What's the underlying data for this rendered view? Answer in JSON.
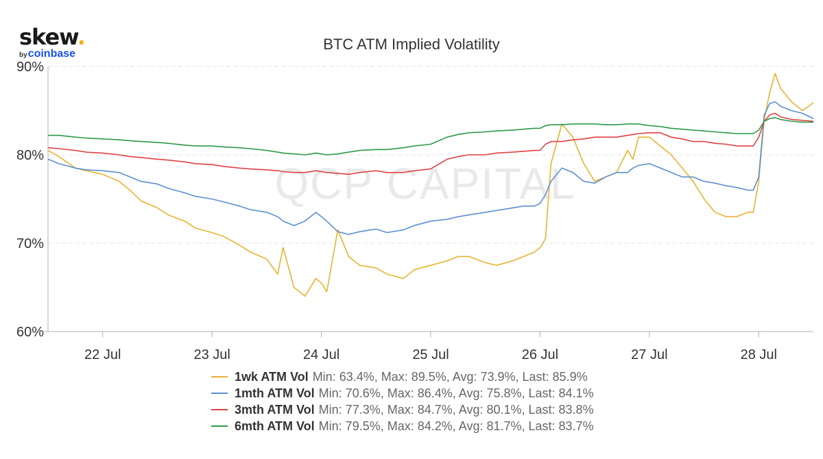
{
  "logo": {
    "main": "skew",
    "dot": ".",
    "by": "by",
    "brand": "coinbase"
  },
  "watermark": "QCP CAPITAL",
  "colors": {
    "grid": "#e6e6e6",
    "axis": "#b0b0b0",
    "watermark": "#e9e9e9"
  },
  "chart_data": {
    "type": "line",
    "title": "BTC ATM Implied Volatility",
    "xlabel": "",
    "ylabel": "",
    "x_ticks": [
      "22 Jul",
      "23 Jul",
      "24 Jul",
      "25 Jul",
      "26 Jul",
      "27 Jul",
      "28 Jul"
    ],
    "x_domain": [
      "21 Jul 12:00",
      "28 Jul 12:00"
    ],
    "y_ticks": [
      "60%",
      "70%",
      "80%",
      "90%"
    ],
    "ylim": [
      60,
      90
    ],
    "grid": true,
    "legend_position": "bottom-center",
    "x": [
      21.5,
      21.6,
      21.75,
      21.85,
      22.0,
      22.15,
      22.25,
      22.35,
      22.5,
      22.6,
      22.75,
      22.85,
      23.0,
      23.1,
      23.25,
      23.35,
      23.5,
      23.6,
      23.65,
      23.75,
      23.85,
      23.95,
      24.0,
      24.05,
      24.15,
      24.25,
      24.35,
      24.5,
      24.6,
      24.75,
      24.85,
      25.0,
      25.15,
      25.25,
      25.35,
      25.5,
      25.6,
      25.75,
      25.85,
      25.95,
      26.0,
      26.05,
      26.1,
      26.2,
      26.3,
      26.4,
      26.5,
      26.6,
      26.7,
      26.8,
      26.85,
      26.9,
      27.0,
      27.1,
      27.2,
      27.3,
      27.4,
      27.5,
      27.6,
      27.7,
      27.8,
      27.9,
      27.95,
      28.0,
      28.05,
      28.1,
      28.15,
      28.2,
      28.3,
      28.4,
      28.5
    ],
    "series": [
      {
        "name": "1wk ATM Vol",
        "color": "#e8b22f",
        "stats": "Min: 63.4%, Max: 89.5%, Avg: 73.9%, Last: 85.9%",
        "values": [
          80.5,
          79.8,
          78.5,
          78.2,
          77.8,
          77.0,
          76.0,
          74.8,
          74.0,
          73.2,
          72.5,
          71.7,
          71.2,
          70.8,
          69.8,
          69.0,
          68.2,
          66.5,
          69.5,
          65.0,
          64.0,
          66.0,
          65.5,
          64.5,
          71.5,
          68.5,
          67.5,
          67.2,
          66.5,
          66.0,
          67.0,
          67.5,
          68.0,
          68.5,
          68.5,
          67.8,
          67.5,
          68.0,
          68.5,
          69.0,
          69.5,
          70.5,
          79.0,
          83.5,
          82.0,
          79.0,
          77.0,
          77.5,
          78.0,
          80.5,
          79.5,
          82.0,
          82.0,
          81.0,
          80.0,
          78.5,
          77.0,
          75.0,
          73.5,
          73.0,
          73.0,
          73.5,
          73.5,
          77.0,
          84.0,
          87.0,
          89.2,
          87.5,
          86.0,
          85.0,
          85.9
        ]
      },
      {
        "name": "1mth ATM Vol",
        "color": "#5b8fd1",
        "stats": "Min: 70.6%, Max: 86.4%, Avg: 75.8%, Last: 84.1%",
        "values": [
          79.5,
          79.0,
          78.5,
          78.3,
          78.2,
          78.0,
          77.5,
          77.0,
          76.7,
          76.2,
          75.7,
          75.3,
          75.0,
          74.7,
          74.2,
          73.8,
          73.5,
          73.0,
          72.5,
          72.0,
          72.5,
          73.5,
          73.0,
          72.5,
          71.3,
          71.0,
          71.3,
          71.6,
          71.2,
          71.5,
          72.0,
          72.5,
          72.7,
          73.0,
          73.2,
          73.5,
          73.7,
          74.0,
          74.2,
          74.2,
          74.5,
          75.5,
          77.0,
          78.5,
          78.0,
          77.0,
          76.8,
          77.5,
          78.0,
          78.0,
          78.5,
          78.8,
          79.0,
          78.5,
          78.0,
          77.5,
          77.5,
          77.0,
          76.8,
          76.5,
          76.3,
          76.0,
          76.0,
          77.5,
          84.5,
          85.8,
          86.0,
          85.5,
          85.0,
          84.7,
          84.1
        ]
      },
      {
        "name": "3mth ATM Vol",
        "color": "#e04040",
        "stats": "Min: 77.3%, Max: 84.7%, Avg: 80.1%, Last: 83.8%",
        "values": [
          80.8,
          80.7,
          80.5,
          80.3,
          80.2,
          80.0,
          79.8,
          79.7,
          79.5,
          79.4,
          79.2,
          79.0,
          78.9,
          78.7,
          78.5,
          78.4,
          78.3,
          78.2,
          78.1,
          78.0,
          78.0,
          78.2,
          78.1,
          78.0,
          77.9,
          77.8,
          78.0,
          78.2,
          78.0,
          78.0,
          78.2,
          78.4,
          79.5,
          79.8,
          80.0,
          80.0,
          80.2,
          80.3,
          80.4,
          80.5,
          80.5,
          81.2,
          81.5,
          81.5,
          81.7,
          81.8,
          82.0,
          82.0,
          82.0,
          82.2,
          82.3,
          82.4,
          82.5,
          82.5,
          82.0,
          81.8,
          81.5,
          81.5,
          81.3,
          81.2,
          81.0,
          81.0,
          81.0,
          82.0,
          83.8,
          84.5,
          84.7,
          84.3,
          84.0,
          83.9,
          83.8
        ]
      },
      {
        "name": "6mth ATM Vol",
        "color": "#2a9a48",
        "stats": "Min: 79.5%, Max: 84.2%, Avg: 81.7%, Last: 83.7%",
        "values": [
          82.2,
          82.2,
          82.0,
          81.9,
          81.8,
          81.7,
          81.6,
          81.5,
          81.4,
          81.3,
          81.1,
          81.0,
          81.0,
          80.9,
          80.8,
          80.7,
          80.5,
          80.3,
          80.2,
          80.1,
          80.0,
          80.2,
          80.1,
          80.0,
          80.1,
          80.3,
          80.5,
          80.6,
          80.6,
          80.8,
          81.0,
          81.2,
          82.0,
          82.3,
          82.5,
          82.6,
          82.7,
          82.8,
          82.9,
          83.0,
          83.0,
          83.3,
          83.4,
          83.4,
          83.5,
          83.5,
          83.5,
          83.4,
          83.4,
          83.5,
          83.5,
          83.5,
          83.3,
          83.2,
          83.0,
          82.9,
          82.8,
          82.7,
          82.6,
          82.5,
          82.4,
          82.4,
          82.4,
          82.8,
          83.8,
          84.1,
          84.2,
          84.0,
          83.8,
          83.7,
          83.7
        ]
      }
    ]
  }
}
